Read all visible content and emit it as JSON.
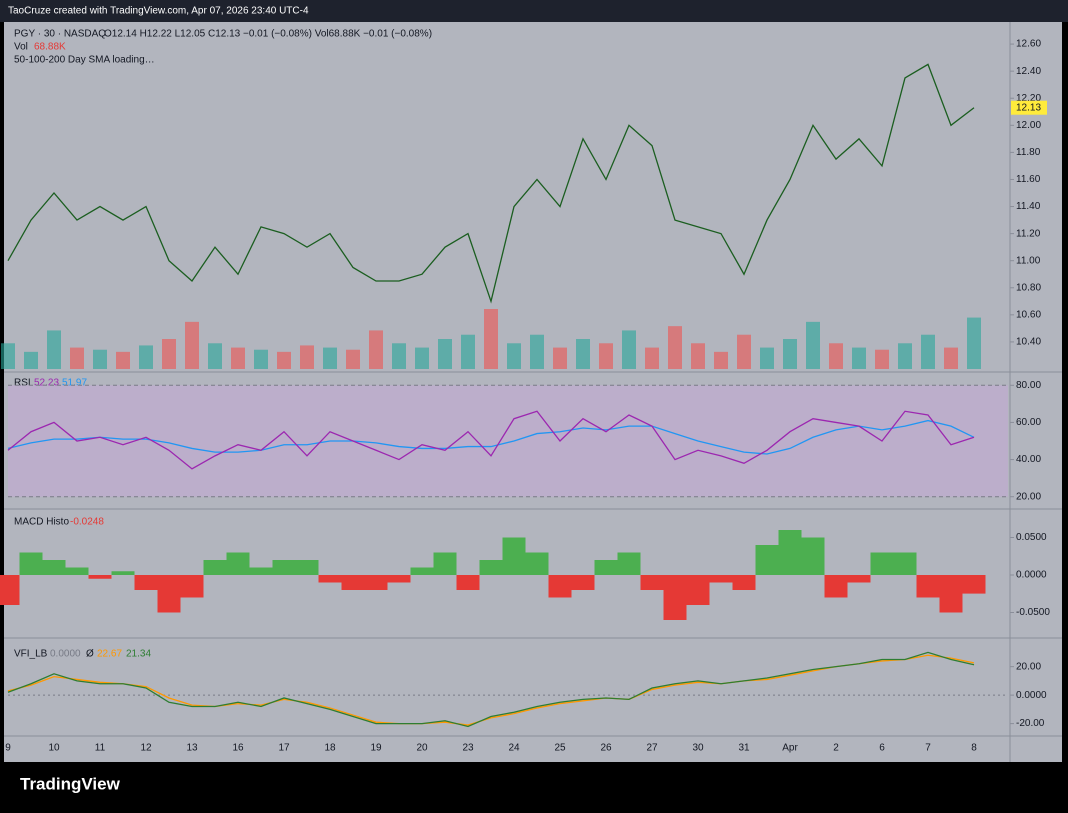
{
  "header": {
    "credit": "TaoCruze created with TradingView.com, Apr 07, 2026 23:40 UTC-4"
  },
  "footer": {
    "brand": "TradingView"
  },
  "x_labels": [
    "9",
    "10",
    "11",
    "12",
    "13",
    "16",
    "17",
    "18",
    "19",
    "20",
    "23",
    "24",
    "25",
    "26",
    "27",
    "30",
    "31",
    "Apr",
    "2",
    "6",
    "7",
    "8"
  ],
  "price": {
    "symbol": "PGY · 30 · NASDAQ",
    "stats": "O12.14  H12.22  L12.05  C12.13  −0.01 (−0.08%)  Vol68.88K  −0.01 (−0.08%)",
    "vol_label": "Vol",
    "vol_value": "68.88K",
    "sma_note": "50-100-200 Day SMA loading…",
    "last_label": "12.13",
    "color": "#1b5e20",
    "up_color": "#26a69a",
    "down_color": "#ef5350",
    "ylim": [
      10.2,
      12.8
    ],
    "yticks": [
      {
        "value": 10.4,
        "label": "10.40"
      },
      {
        "value": 10.6,
        "label": "10.60"
      },
      {
        "value": 10.8,
        "label": "10.80"
      },
      {
        "value": 11,
        "label": "11.00"
      },
      {
        "value": 11.2,
        "label": "11.20"
      },
      {
        "value": 11.4,
        "label": "11.40"
      },
      {
        "value": 11.6,
        "label": "11.60"
      },
      {
        "value": 11.8,
        "label": "11.80"
      },
      {
        "value": 12,
        "label": "12.00"
      },
      {
        "value": 12.2,
        "label": "12.20"
      },
      {
        "value": 12.4,
        "label": "12.40"
      },
      {
        "value": 12.6,
        "label": "12.60"
      }
    ],
    "values": [
      11.0,
      11.3,
      11.5,
      11.3,
      11.4,
      11.3,
      11.4,
      11.0,
      10.85,
      11.1,
      10.9,
      11.25,
      11.2,
      11.1,
      11.2,
      10.95,
      10.85,
      10.85,
      10.9,
      11.1,
      11.2,
      10.7,
      11.4,
      11.6,
      11.4,
      11.9,
      11.6,
      12.0,
      11.85,
      11.3,
      11.25,
      11.2,
      10.9,
      11.3,
      11.6,
      12.0,
      11.75,
      11.9,
      11.7,
      12.35,
      12.45,
      12.0,
      12.13
    ],
    "volume": [
      60,
      40,
      90,
      50,
      45,
      40,
      55,
      70,
      110,
      60,
      50,
      45,
      40,
      55,
      50,
      45,
      90,
      60,
      50,
      70,
      80,
      140,
      60,
      80,
      50,
      70,
      60,
      90,
      50,
      100,
      60,
      40,
      80,
      50,
      70,
      110,
      60,
      50,
      45,
      60,
      80,
      50,
      120
    ]
  },
  "rsi": {
    "name": "RSI",
    "value_label": "52.23",
    "ma_label": "51.97",
    "color": "#9c27b0",
    "ma_color": "#2196f3",
    "band_color": "#c5a8d6",
    "band": [
      20,
      80
    ],
    "ylim": [
      15,
      85
    ],
    "yticks": [
      {
        "value": 20,
        "label": "20.00"
      },
      {
        "value": 40,
        "label": "40.00"
      },
      {
        "value": 60,
        "label": "60.00"
      },
      {
        "value": 80,
        "label": "80.00"
      }
    ],
    "values": [
      45,
      55,
      60,
      50,
      52,
      48,
      52,
      45,
      35,
      42,
      48,
      45,
      55,
      42,
      55,
      50,
      45,
      40,
      48,
      45,
      55,
      42,
      62,
      66,
      50,
      62,
      55,
      64,
      58,
      40,
      45,
      42,
      38,
      45,
      55,
      62,
      60,
      58,
      50,
      66,
      64,
      48,
      52
    ],
    "ma": [
      46,
      49,
      51,
      51,
      52,
      51,
      51,
      49,
      46,
      44,
      44,
      45,
      48,
      48,
      50,
      50,
      49,
      47,
      46,
      46,
      47,
      47,
      50,
      54,
      55,
      57,
      56,
      58,
      58,
      54,
      50,
      47,
      44,
      43,
      46,
      52,
      56,
      58,
      56,
      58,
      61,
      58,
      52
    ]
  },
  "macd": {
    "name": "MACD Histo",
    "value_label": "-0.0248",
    "pos_color": "#4caf50",
    "neg_color": "#e53935",
    "ylim": [
      -0.08,
      0.08
    ],
    "yticks": [
      {
        "value": -0.05,
        "label": "-0.0500"
      },
      {
        "value": 0,
        "label": "0.0000"
      },
      {
        "value": 0.05,
        "label": "0.0500"
      }
    ],
    "values": [
      -0.04,
      0.03,
      0.02,
      0.01,
      -0.005,
      0.005,
      -0.02,
      -0.05,
      -0.03,
      0.02,
      0.03,
      0.01,
      0.02,
      0.02,
      -0.01,
      -0.02,
      -0.02,
      -0.01,
      0.01,
      0.03,
      -0.02,
      0.02,
      0.05,
      0.03,
      -0.03,
      -0.02,
      0.02,
      0.03,
      -0.02,
      -0.06,
      -0.04,
      -0.01,
      -0.02,
      0.04,
      0.06,
      0.05,
      -0.03,
      -0.01,
      0.03,
      0.03,
      -0.03,
      -0.05,
      -0.0248
    ]
  },
  "vfi": {
    "name": "VFI_LB",
    "zero_label": "0.0000",
    "sep": "Ø",
    "signal_label": "22.67",
    "value_label": "21.34",
    "color": "#2e7d32",
    "signal_color": "#ff9800",
    "ylim": [
      -28,
      38
    ],
    "yticks": [
      {
        "value": -20,
        "label": "-20.00"
      },
      {
        "value": 0,
        "label": "0.0000"
      },
      {
        "value": 20,
        "label": "20.00"
      }
    ],
    "values": [
      2,
      8,
      15,
      10,
      8,
      8,
      5,
      -5,
      -8,
      -8,
      -5,
      -8,
      -2,
      -6,
      -10,
      -15,
      -20,
      -20,
      -20,
      -18,
      -22,
      -15,
      -12,
      -8,
      -5,
      -3,
      -2,
      -3,
      5,
      8,
      10,
      8,
      10,
      12,
      15,
      18,
      20,
      22,
      25,
      25,
      30,
      25,
      21.34
    ],
    "signal": [
      3,
      7,
      13,
      11,
      9,
      8,
      6,
      -2,
      -7,
      -8,
      -6,
      -7,
      -3,
      -5,
      -9,
      -14,
      -19,
      -20,
      -20,
      -19,
      -21,
      -16,
      -13,
      -9,
      -6,
      -4,
      -2,
      -3,
      4,
      7,
      9,
      8,
      10,
      11,
      14,
      17,
      20,
      22,
      24,
      25,
      28,
      26,
      22.67
    ]
  }
}
